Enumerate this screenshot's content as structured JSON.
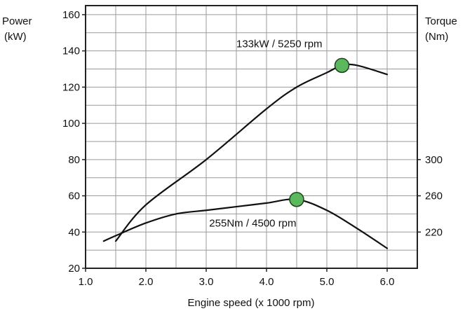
{
  "chart_data": {
    "type": "line",
    "xlabel": "Engine speed (x 1000 rpm)",
    "ylabel_left": [
      "Power",
      "(kW)"
    ],
    "ylabel_right": [
      "Torque",
      "(Nm)"
    ],
    "xlim": [
      1.0,
      6.5
    ],
    "ylim_left": [
      20,
      165
    ],
    "x_ticks": [
      "1.0",
      "2.0",
      "3.0",
      "4.0",
      "5.0",
      "6.0"
    ],
    "x_tick_values": [
      1.0,
      2.0,
      3.0,
      4.0,
      5.0,
      6.0
    ],
    "y_left_ticks": [
      "20",
      "40",
      "60",
      "80",
      "100",
      "120",
      "140",
      "160"
    ],
    "y_left_tick_values": [
      20,
      40,
      60,
      80,
      100,
      120,
      140,
      160
    ],
    "y_right_ticks": [
      "220",
      "260",
      "300"
    ],
    "y_right_tick_power_equiv": [
      40,
      60,
      80
    ],
    "grid": true,
    "series": [
      {
        "key": "power",
        "axis": "left",
        "x": [
          1.5,
          2.0,
          3.0,
          4.0,
          4.5,
          5.0,
          5.25,
          5.5,
          6.0
        ],
        "y": [
          35,
          55,
          80,
          108,
          120,
          128,
          132,
          132,
          127
        ]
      },
      {
        "key": "torque",
        "axis": "right",
        "x": [
          1.3,
          1.5,
          2.0,
          2.5,
          3.0,
          3.5,
          4.0,
          4.5,
          5.0,
          5.5,
          6.0
        ],
        "y": [
          35,
          38,
          45,
          50,
          52,
          54,
          56,
          58,
          52,
          42,
          31
        ]
      }
    ],
    "annotations": [
      {
        "text": "133kW / 5250 rpm",
        "x": 5.25,
        "y": 132,
        "text_x": 3.5,
        "text_y": 144
      },
      {
        "text": "255Nm / 4500 rpm",
        "x": 4.5,
        "y": 58,
        "text_x": 3.05,
        "text_y": 45
      }
    ]
  }
}
